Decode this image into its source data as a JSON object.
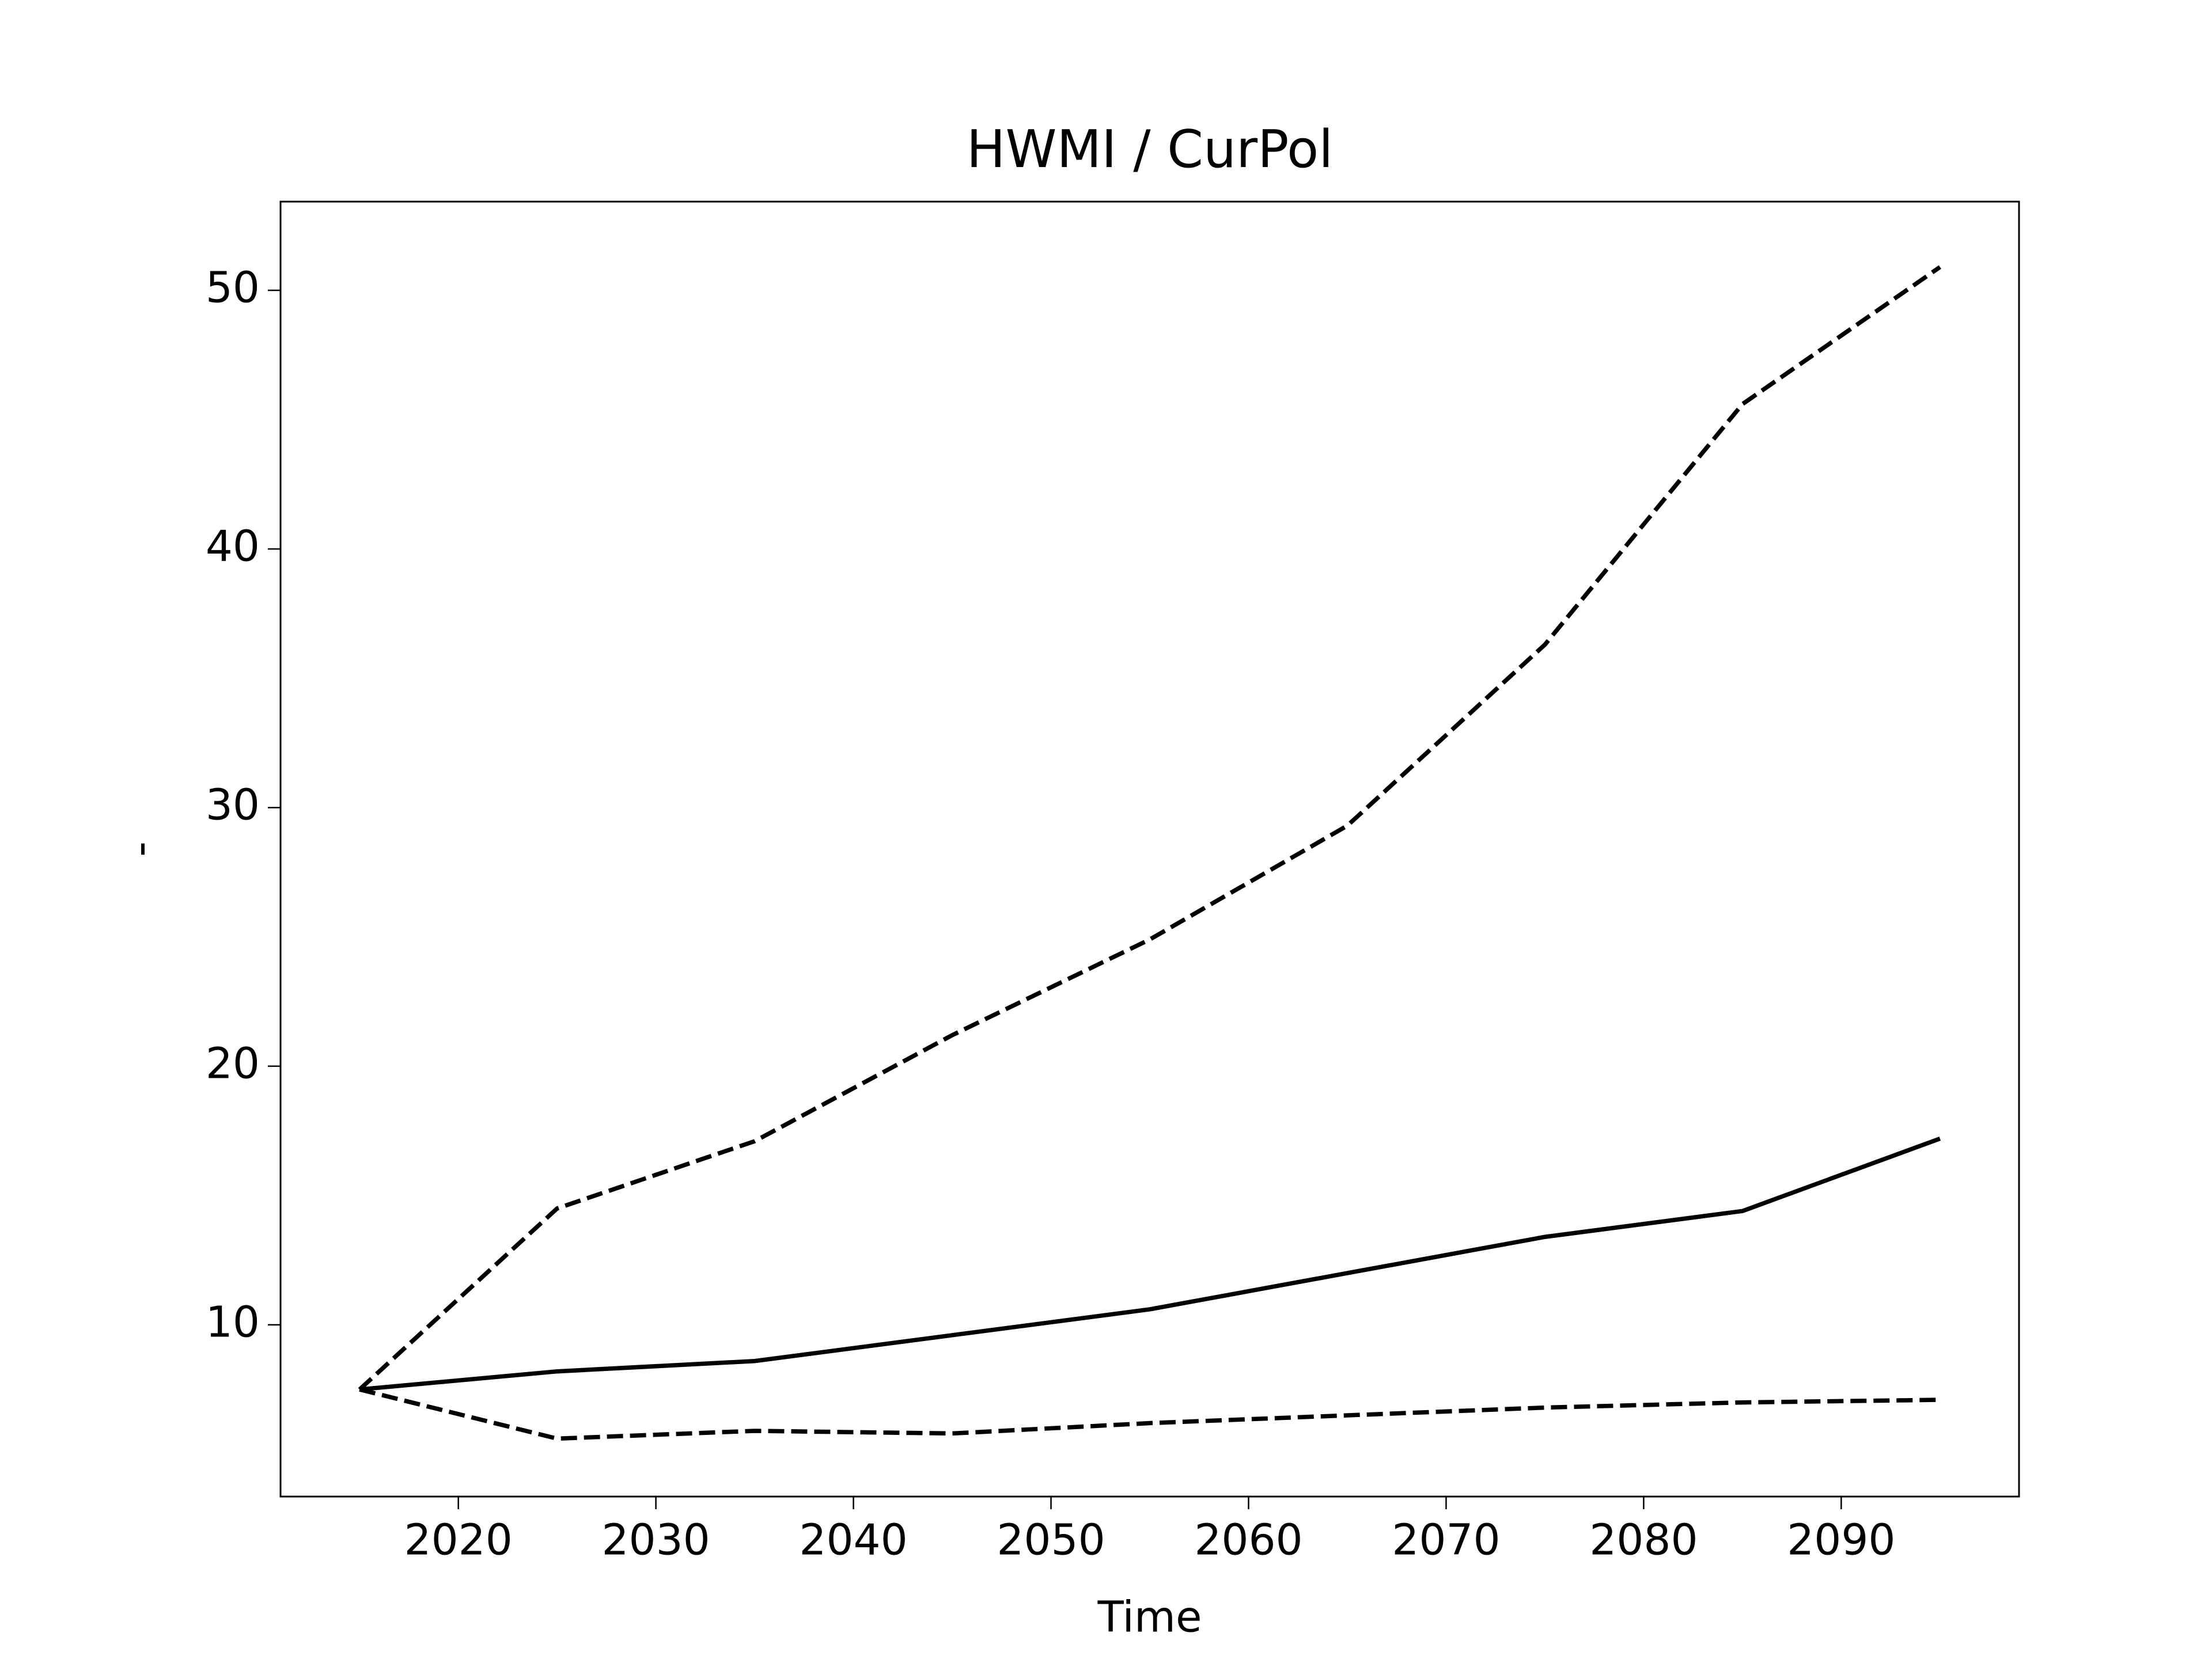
{
  "chart_data": {
    "type": "line",
    "title": "HWMI / CurPol",
    "xlabel": "Time",
    "ylabel": "-",
    "x": [
      2015,
      2025,
      2035,
      2045,
      2055,
      2065,
      2075,
      2085,
      2095
    ],
    "series": [
      {
        "color": "#000000",
        "linestyle": "solid",
        "values": [
          7.5,
          8.2,
          8.6,
          9.6,
          10.6,
          12.0,
          13.4,
          14.4,
          17.2
        ]
      },
      {
        "color": "#000000",
        "linestyle": "dashed",
        "values": [
          7.5,
          14.5,
          17.1,
          21.2,
          24.9,
          29.3,
          36.3,
          45.6,
          50.9
        ]
      },
      {
        "color": "#000000",
        "linestyle": "dashed",
        "values": [
          7.5,
          5.6,
          5.9,
          5.8,
          6.2,
          6.5,
          6.8,
          7.0,
          7.1
        ]
      }
    ],
    "xlim": [
      2011,
      2099
    ],
    "xticks": [
      2020,
      2030,
      2040,
      2050,
      2060,
      2070,
      2080,
      2090
    ],
    "ylim": [
      3.36,
      53.43
    ],
    "yticks": [
      10,
      20,
      30,
      40,
      50
    ],
    "grid": false
  }
}
